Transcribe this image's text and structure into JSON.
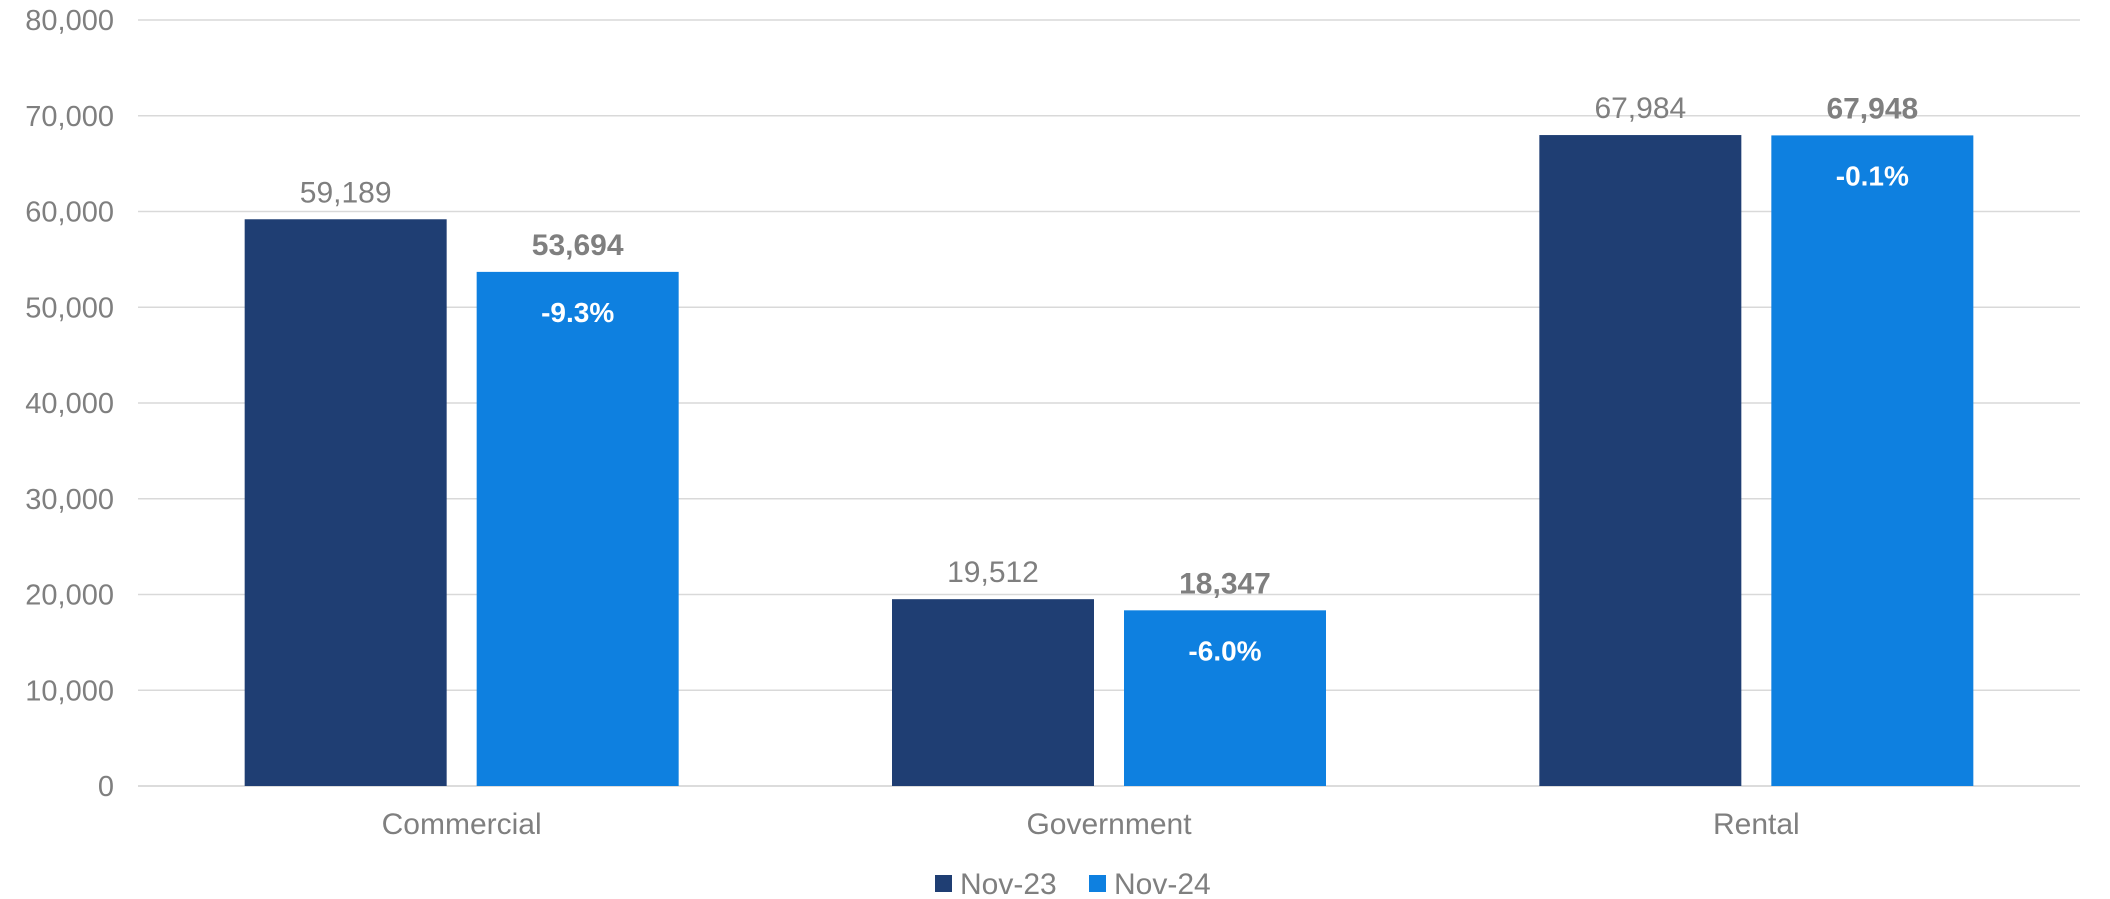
{
  "chart_data": {
    "type": "bar",
    "categories": [
      "Commercial",
      "Government",
      "Rental"
    ],
    "series": [
      {
        "name": "Nov-23",
        "color": "#1f3e73",
        "values": [
          59189,
          19512,
          67984
        ],
        "labels": [
          "59,189",
          "19,512",
          "67,984"
        ]
      },
      {
        "name": "Nov-24",
        "color": "#0e80e0",
        "values": [
          53694,
          18347,
          67948
        ],
        "labels": [
          "53,694",
          "18,347",
          "67,948"
        ],
        "changes": [
          "-9.3%",
          "-6.0%",
          "-0.1%"
        ]
      }
    ],
    "ylim": [
      0,
      80000
    ],
    "yticks": [
      0,
      10000,
      20000,
      30000,
      40000,
      50000,
      60000,
      70000,
      80000
    ],
    "ytick_labels": [
      "0",
      "10,000",
      "20,000",
      "30,000",
      "40,000",
      "50,000",
      "60,000",
      "70,000",
      "80,000"
    ],
    "grid": true,
    "legend_position": "bottom-center",
    "title": "",
    "xlabel": "",
    "ylabel": ""
  }
}
